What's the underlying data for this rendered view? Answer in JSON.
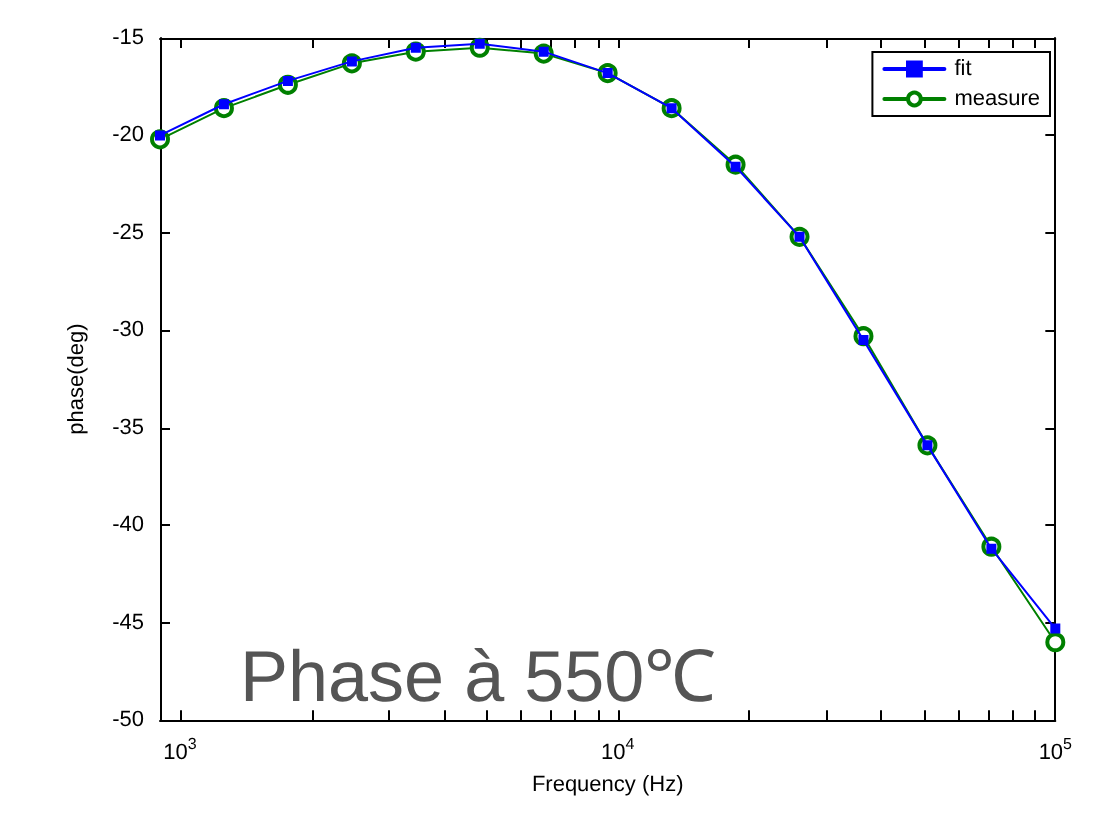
{
  "chart_data": {
    "type": "line",
    "xlabel": "Frequency (Hz)",
    "ylabel": "phase(deg)",
    "x": [
      900,
      1260,
      1764,
      2470,
      3457,
      4840,
      6776,
      9487,
      13282,
      18595,
      26033,
      36446,
      51025,
      71435,
      100000
    ],
    "series": [
      {
        "name": "fit",
        "color": "#0000ff",
        "marker": "square",
        "values": [
          -20.0,
          -18.4,
          -17.2,
          -16.2,
          -15.5,
          -15.3,
          -15.7,
          -16.8,
          -18.6,
          -21.6,
          -25.2,
          -30.5,
          -35.9,
          -41.2,
          -45.3
        ]
      },
      {
        "name": "measure",
        "color": "#008000",
        "marker": "circle",
        "values": [
          -20.2,
          -18.6,
          -17.4,
          -16.3,
          -15.7,
          -15.5,
          -15.8,
          -16.8,
          -18.6,
          -21.5,
          -25.2,
          -30.3,
          -35.9,
          -41.1,
          -46.0
        ]
      }
    ],
    "log": "x",
    "xlim": [
      900,
      100000
    ],
    "xticks": [
      {
        "value": 1000,
        "label": "10$^{3}$"
      },
      {
        "value": 2000,
        "label": null
      },
      {
        "value": 3000,
        "label": null
      },
      {
        "value": 4000,
        "label": null
      },
      {
        "value": 5000,
        "label": null
      },
      {
        "value": 6000,
        "label": null
      },
      {
        "value": 7000,
        "label": null
      },
      {
        "value": 8000,
        "label": null
      },
      {
        "value": 9000,
        "label": null
      },
      {
        "value": 10000,
        "label": "10$^{4}$"
      },
      {
        "value": 20000,
        "label": null
      },
      {
        "value": 30000,
        "label": null
      },
      {
        "value": 40000,
        "label": null
      },
      {
        "value": 50000,
        "label": null
      },
      {
        "value": 60000,
        "label": null
      },
      {
        "value": 70000,
        "label": null
      },
      {
        "value": 80000,
        "label": null
      },
      {
        "value": 90000,
        "label": null
      },
      {
        "value": 100000,
        "label": "10$^{5}$"
      }
    ],
    "ylim": [
      -50,
      -15
    ],
    "yticks": [
      -50,
      -45,
      -40,
      -35,
      -30,
      -25,
      -20,
      -15
    ],
    "grid": false,
    "legend": "top right",
    "line_style": "solid",
    "annotations": [
      "Phase à 550℃"
    ]
  }
}
